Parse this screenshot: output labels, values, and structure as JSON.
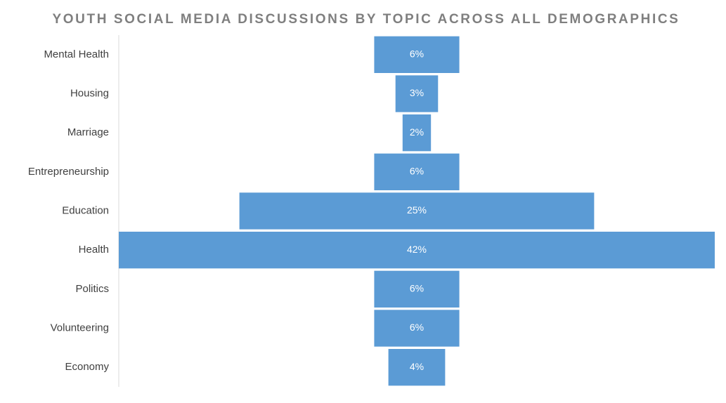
{
  "chart_data": {
    "type": "funnel",
    "title": "YOUTH SOCIAL MEDIA DISCUSSIONS BY TOPIC ACROSS ALL DEMOGRAPHICS",
    "categories": [
      "Mental Health",
      "Housing",
      "Marriage",
      "Entrepreneurship",
      "Education",
      "Health",
      "Politics",
      "Volunteering",
      "Economy"
    ],
    "values": [
      6,
      3,
      2,
      6,
      25,
      42,
      6,
      6,
      4
    ],
    "value_labels": [
      "6%",
      "3%",
      "2%",
      "6%",
      "25%",
      "42%",
      "6%",
      "6%",
      "4%"
    ],
    "color": "#5b9bd5"
  }
}
